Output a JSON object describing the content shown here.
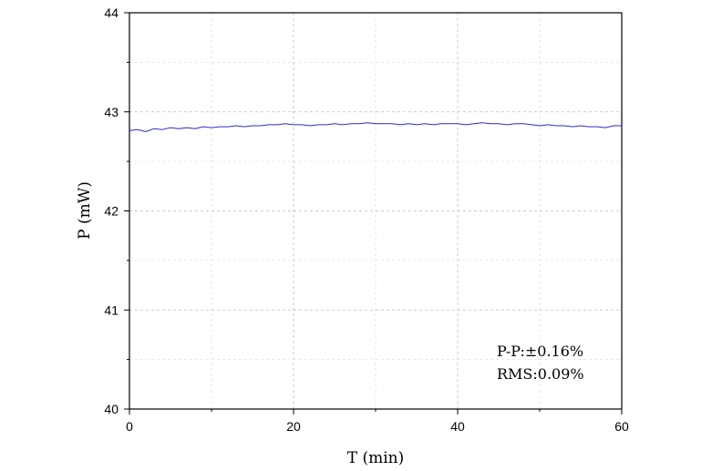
{
  "chart_data": {
    "type": "line",
    "title": "",
    "xlabel": "T (min)",
    "ylabel": "P (mW)",
    "xlim": [
      0,
      60
    ],
    "ylim": [
      40,
      44
    ],
    "x_ticks": [
      "0",
      "20",
      "40",
      "60"
    ],
    "y_ticks": [
      "40",
      "41",
      "42",
      "43",
      "44"
    ],
    "grid": true,
    "line_color": "#2b2bd6",
    "series": [
      {
        "x": [
          0,
          1,
          2,
          3,
          4,
          5,
          6,
          7,
          8,
          9,
          10,
          11,
          12,
          13,
          14,
          15,
          16,
          17,
          18,
          19,
          20,
          21,
          22,
          23,
          24,
          25,
          26,
          27,
          28,
          29,
          30,
          31,
          32,
          33,
          34,
          35,
          36,
          37,
          38,
          39,
          40,
          41,
          42,
          43,
          44,
          45,
          46,
          47,
          48,
          49,
          50,
          51,
          52,
          53,
          54,
          55,
          56,
          57,
          58,
          59,
          60
        ],
        "values": [
          42.81,
          42.82,
          42.8,
          42.83,
          42.82,
          42.84,
          42.83,
          42.84,
          42.83,
          42.85,
          42.84,
          42.85,
          42.85,
          42.86,
          42.85,
          42.86,
          42.86,
          42.87,
          42.87,
          42.88,
          42.87,
          42.87,
          42.86,
          42.87,
          42.87,
          42.88,
          42.87,
          42.88,
          42.88,
          42.89,
          42.88,
          42.88,
          42.88,
          42.87,
          42.88,
          42.87,
          42.88,
          42.87,
          42.88,
          42.88,
          42.88,
          42.87,
          42.88,
          42.89,
          42.88,
          42.88,
          42.87,
          42.88,
          42.88,
          42.87,
          42.86,
          42.87,
          42.86,
          42.86,
          42.85,
          42.86,
          42.85,
          42.85,
          42.84,
          42.86,
          42.86
        ]
      }
    ],
    "annotations": [
      "P-P:±0.16%",
      "RMS:0.09%"
    ]
  }
}
